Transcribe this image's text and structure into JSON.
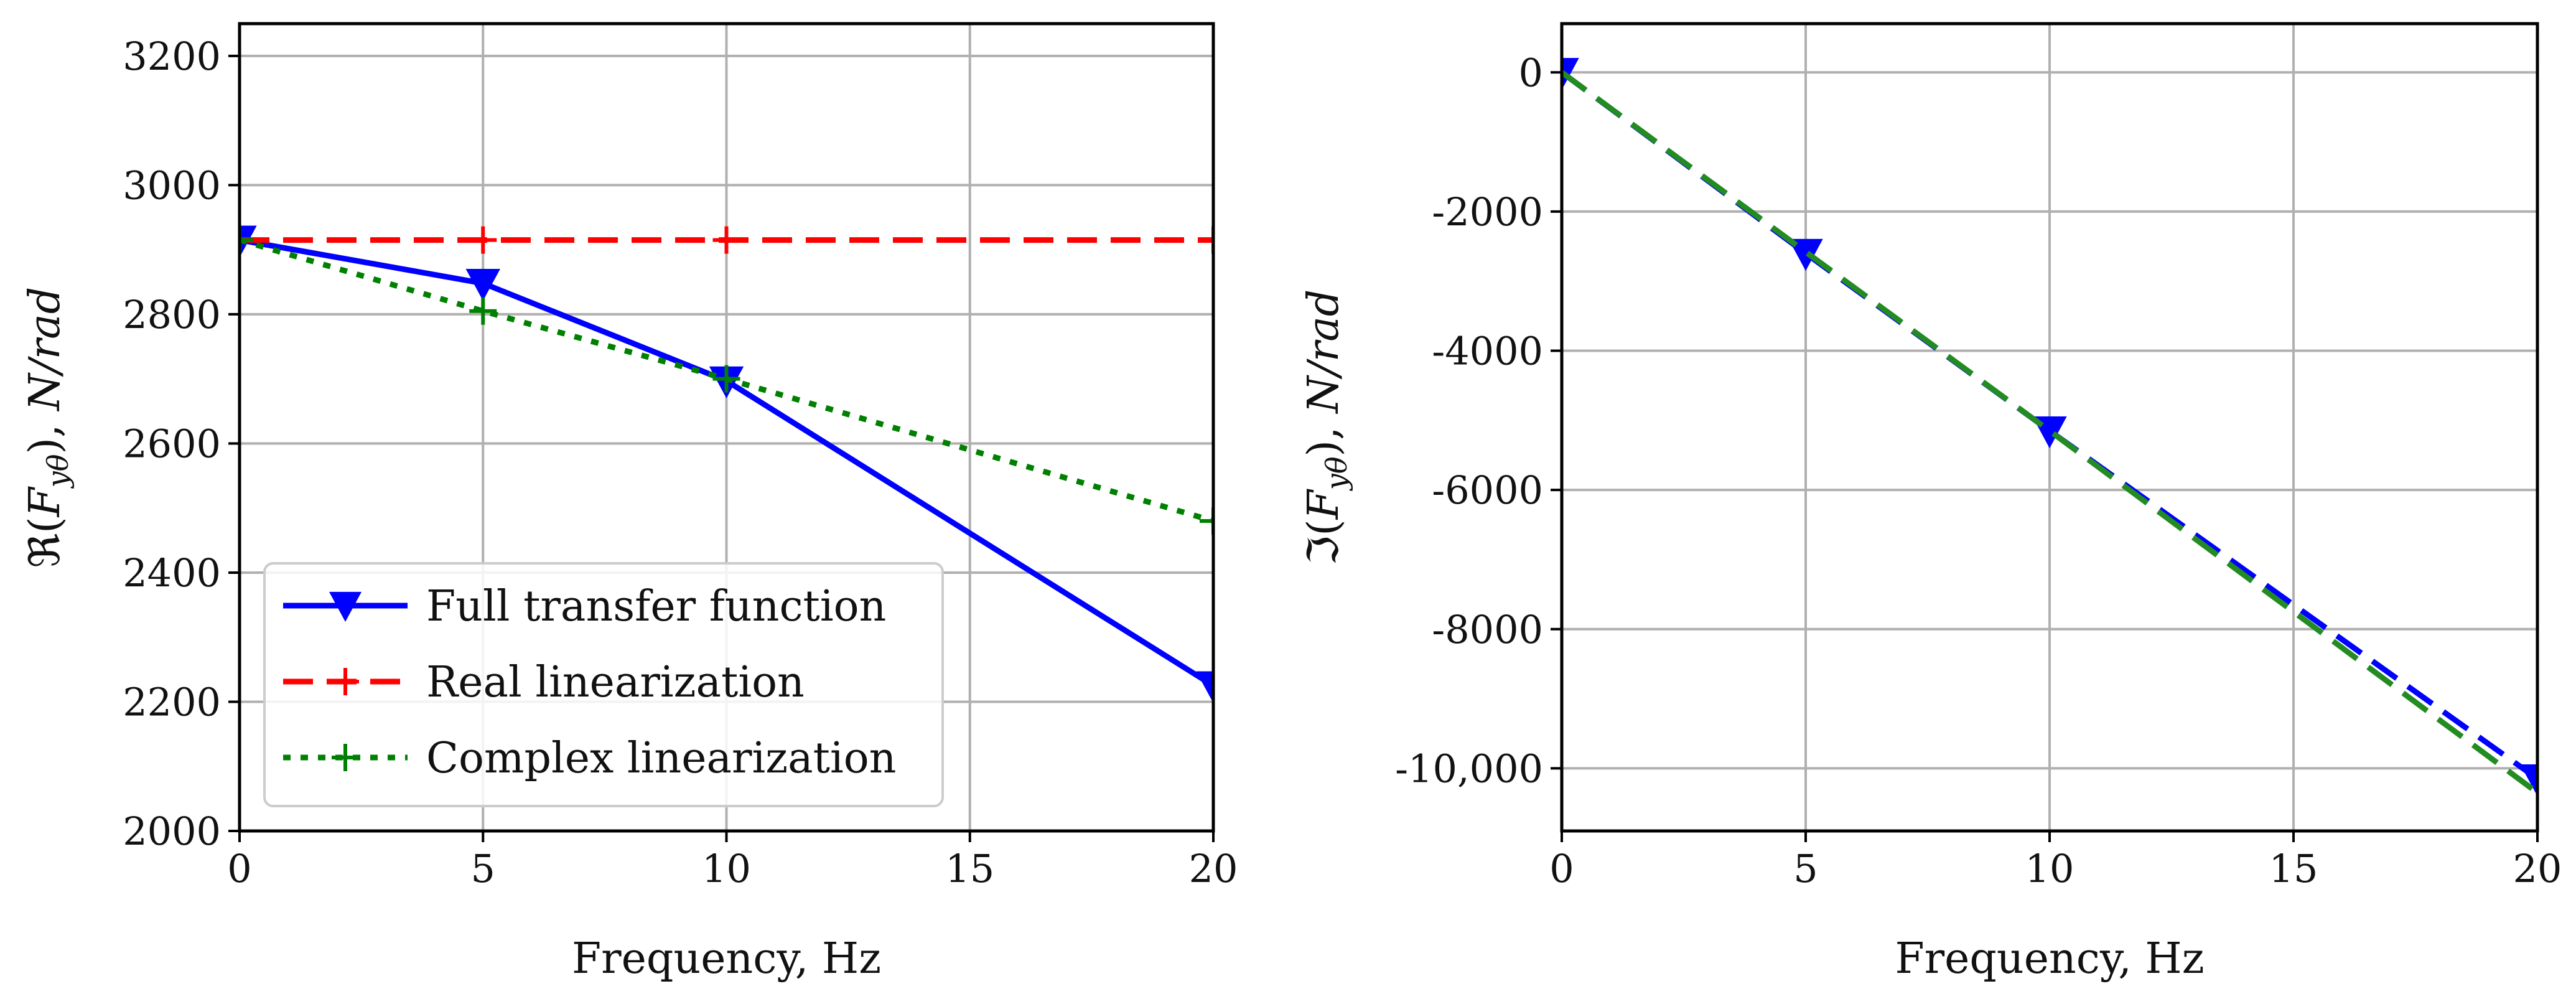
{
  "chart_data": [
    {
      "type": "line",
      "xlabel": "Frequency, Hz",
      "ylabel_parts": {
        "prefix": "ℜ(",
        "F": "F",
        "sub": "yθ",
        "suffix": "),  ",
        "unit": "N/rad"
      },
      "xlim": [
        0,
        20
      ],
      "ylim": [
        2000,
        3250
      ],
      "xticks": [
        0,
        5,
        10,
        15,
        20
      ],
      "xtick_labels": [
        "0",
        "5",
        "10",
        "15",
        "20"
      ],
      "yticks": [
        2000,
        2200,
        2400,
        2600,
        2800,
        3000,
        3200
      ],
      "ytick_labels": [
        "2000",
        "2200",
        "2400",
        "2600",
        "2800",
        "3000",
        "3200"
      ],
      "grid": true,
      "legend_position": "lower-left",
      "series": [
        {
          "name": "Full transfer function",
          "color": "#0000ff",
          "style": "solid",
          "marker": "triangle-down",
          "x": [
            0,
            5,
            10,
            20
          ],
          "y": [
            2915,
            2848,
            2697,
            2225
          ]
        },
        {
          "name": "Real linearization",
          "color": "#ff0000",
          "style": "dashed",
          "marker": "plus",
          "x": [
            0,
            5,
            10,
            20
          ],
          "y": [
            2915,
            2915,
            2915,
            2915
          ]
        },
        {
          "name": "Complex linearization",
          "color": "#008000",
          "style": "dotted",
          "marker": "plus",
          "x": [
            0,
            5,
            10,
            20
          ],
          "y": [
            2915,
            2805,
            2700,
            2480
          ]
        }
      ]
    },
    {
      "type": "line",
      "xlabel": "Frequency, Hz",
      "ylabel_parts": {
        "prefix": "ℑ(",
        "F": "F",
        "sub": "yθ",
        "suffix": "),  ",
        "unit": "N/rad"
      },
      "xlim": [
        0,
        20
      ],
      "ylim": [
        -10900,
        700
      ],
      "xticks": [
        0,
        5,
        10,
        15,
        20
      ],
      "xtick_labels": [
        "0",
        "5",
        "10",
        "15",
        "20"
      ],
      "yticks": [
        0,
        -2000,
        -4000,
        -6000,
        -8000,
        -10000
      ],
      "ytick_labels": [
        "0",
        "-2000",
        "-4000",
        "-6000",
        "-8000",
        "-10,000"
      ],
      "grid": true,
      "series": [
        {
          "name": "Full transfer function",
          "color": "#0000ff",
          "style": "dashed",
          "marker": "triangle-down",
          "x": [
            0,
            5,
            10,
            20
          ],
          "y": [
            0,
            -2600,
            -5150,
            -10150
          ]
        },
        {
          "name": "Complex linearization",
          "color": "#228b22",
          "style": "dashed",
          "marker": "none",
          "x": [
            0,
            5,
            10,
            20
          ],
          "y": [
            0,
            -2580,
            -5150,
            -10350
          ]
        }
      ]
    }
  ]
}
